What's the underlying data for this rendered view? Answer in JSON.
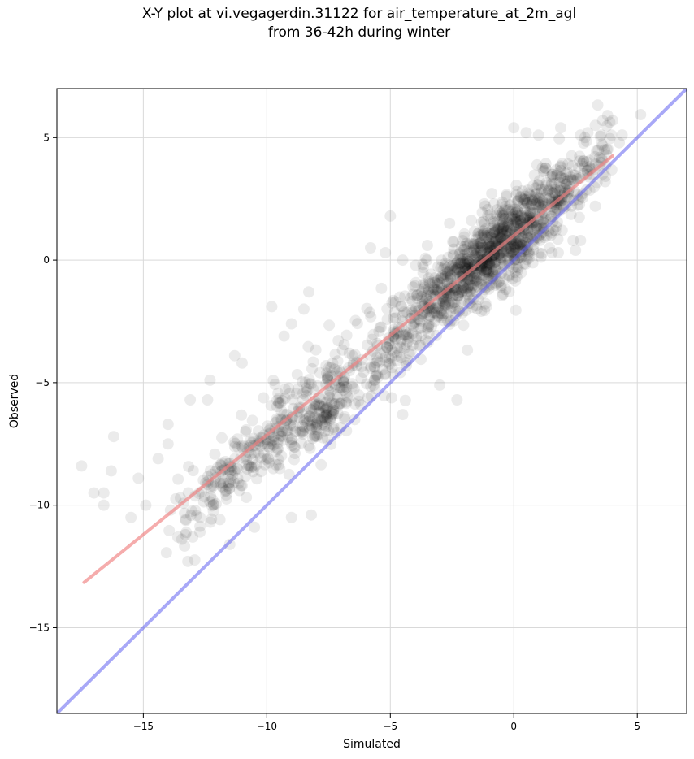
{
  "chart_data": {
    "type": "scatter",
    "title_line1": "X-Y plot at vi.vegagerdin.31122 for air_temperature_at_2m_agl",
    "title_line2": "from 36-42h during winter",
    "xlabel": "Simulated",
    "ylabel": "Observed",
    "xlim": [
      -18.5,
      7.0
    ],
    "ylim": [
      -18.5,
      7.0
    ],
    "xticks": [
      -15,
      -10,
      -5,
      0,
      5
    ],
    "yticks": [
      -15,
      -10,
      -5,
      0,
      5
    ],
    "xtick_labels": [
      "−15",
      "−10",
      "−5",
      "0",
      "5"
    ],
    "ytick_labels": [
      "−15",
      "−10",
      "−5",
      "0",
      "5"
    ],
    "grid": true,
    "point_color": "#000000",
    "point_alpha": 0.08,
    "points": {
      "clusters": [
        {
          "cx": 0.0,
          "cy": 1.0,
          "sx": 1.1,
          "sy": 1.3,
          "n": 500
        },
        {
          "cx": -1.5,
          "cy": 0.0,
          "sx": 1.0,
          "sy": 1.1,
          "n": 300
        },
        {
          "cx": -3.5,
          "cy": -1.8,
          "sx": 1.2,
          "sy": 1.3,
          "n": 220
        },
        {
          "cx": -6.5,
          "cy": -4.8,
          "sx": 1.8,
          "sy": 1.6,
          "n": 200
        },
        {
          "cx": -7.5,
          "cy": -6.2,
          "sx": 0.4,
          "sy": 0.6,
          "n": 70
        },
        {
          "cx": -9.8,
          "cy": -7.3,
          "sx": 1.3,
          "sy": 1.2,
          "n": 150
        },
        {
          "cx": -12.0,
          "cy": -9.2,
          "sx": 0.9,
          "sy": 1.2,
          "n": 90
        },
        {
          "cx": 2.5,
          "cy": 3.2,
          "sx": 0.8,
          "sy": 1.0,
          "n": 120
        }
      ],
      "extra": [
        [
          -17.5,
          -8.4
        ],
        [
          -17.0,
          -9.5
        ],
        [
          -16.6,
          -9.5
        ],
        [
          -16.6,
          -10.0
        ],
        [
          -16.2,
          -7.2
        ],
        [
          -16.3,
          -8.6
        ],
        [
          -15.2,
          -8.9
        ],
        [
          -14.9,
          -10.0
        ],
        [
          -14.0,
          -6.7
        ],
        [
          -13.9,
          -10.2
        ],
        [
          -13.3,
          -11.2
        ],
        [
          -13.0,
          -11.3
        ],
        [
          -13.6,
          -11.3
        ],
        [
          -13.1,
          -5.7
        ],
        [
          -11.3,
          -3.9
        ],
        [
          -11.0,
          -4.2
        ],
        [
          -12.3,
          -4.9
        ],
        [
          -12.4,
          -5.7
        ],
        [
          -9.3,
          -3.1
        ],
        [
          -9.8,
          -1.9
        ],
        [
          -9.0,
          -2.6
        ],
        [
          -8.5,
          -2.0
        ],
        [
          -8.3,
          -1.3
        ],
        [
          -8.2,
          -10.4
        ],
        [
          -10.5,
          -10.9
        ],
        [
          -9.0,
          -10.5
        ],
        [
          -5.8,
          0.5
        ],
        [
          -5.0,
          1.8
        ],
        [
          -4.5,
          0.0
        ],
        [
          -5.2,
          0.3
        ],
        [
          -2.3,
          -5.7
        ],
        [
          -3.0,
          -5.1
        ],
        [
          -4.5,
          -6.3
        ],
        [
          -3.5,
          0.6
        ],
        [
          -2.6,
          1.5
        ],
        [
          -0.5,
          1.9
        ],
        [
          0.0,
          5.4
        ],
        [
          0.5,
          5.2
        ],
        [
          1.0,
          5.1
        ],
        [
          1.9,
          5.4
        ],
        [
          2.7,
          5.1
        ],
        [
          3.0,
          5.2
        ],
        [
          3.3,
          5.5
        ],
        [
          3.6,
          5.7
        ],
        [
          3.8,
          5.9
        ],
        [
          4.0,
          5.7
        ],
        [
          2.2,
          2.8
        ],
        [
          2.4,
          0.8
        ],
        [
          2.7,
          0.8
        ],
        [
          2.5,
          0.4
        ],
        [
          1.8,
          0.3
        ],
        [
          3.7,
          3.2
        ],
        [
          3.3,
          2.2
        ],
        [
          -12.7,
          -10.5
        ],
        [
          -11.5,
          -11.6
        ],
        [
          -13.5,
          -9.7
        ],
        [
          -14.4,
          -8.1
        ],
        [
          -14.0,
          -7.5
        ],
        [
          -15.5,
          -10.5
        ]
      ],
      "seed": 31122
    },
    "series": [
      {
        "type": "line",
        "points": [
          [
            -17.4,
            -13.15
          ],
          [
            4.0,
            4.25
          ]
        ],
        "color": "#f08080",
        "alpha": 0.65
      },
      {
        "type": "line",
        "points": [
          [
            -18.5,
            -18.5
          ],
          [
            7.0,
            7.0
          ]
        ],
        "color": "#6060f0",
        "alpha": 0.55
      }
    ]
  }
}
